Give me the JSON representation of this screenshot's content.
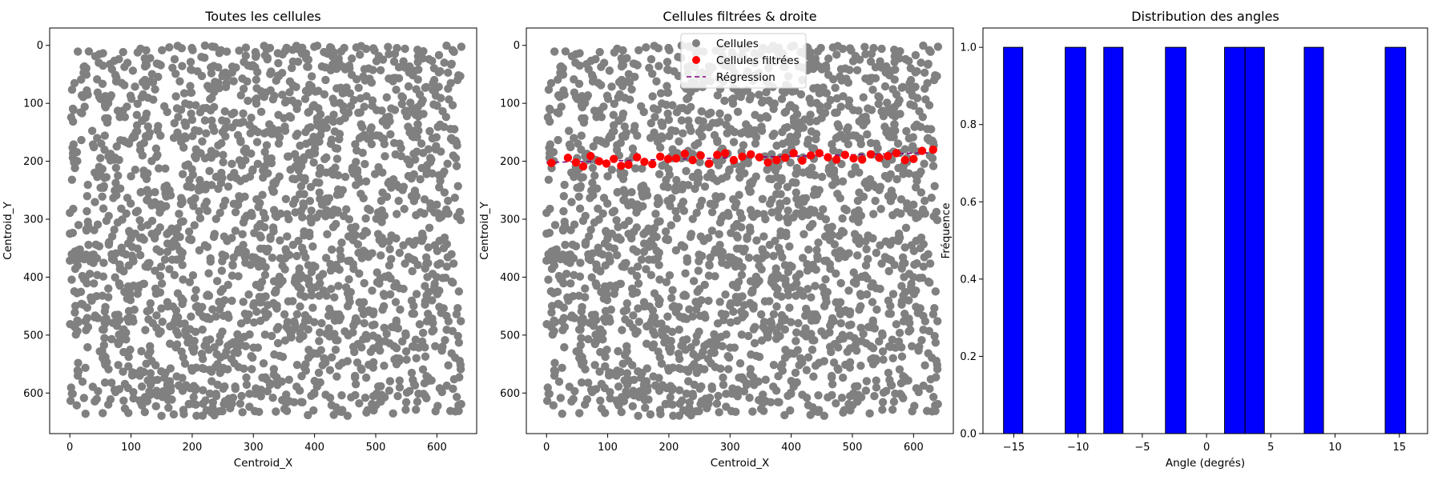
{
  "chart_data": [
    {
      "type": "scatter",
      "title": "Toutes les cellules",
      "xlabel": "Centroid_X",
      "ylabel": "Centroid_Y",
      "xlim": [
        -33,
        665
      ],
      "ylim": [
        670,
        -30
      ],
      "y_inverted": true,
      "xticks": [
        0,
        100,
        200,
        300,
        400,
        500,
        600
      ],
      "yticks": [
        0,
        100,
        200,
        300,
        400,
        500,
        600
      ],
      "series": [
        {
          "color": "#808080",
          "points_summary": "approx. 2000 cells uniformly distributed over x 0-640, y 0-640",
          "x_range": [
            0,
            640
          ],
          "y_range": [
            0,
            640
          ],
          "count": 2000
        }
      ]
    },
    {
      "type": "scatter",
      "title": "Cellules filtrées & droite",
      "xlabel": "Centroid_X",
      "ylabel": "Centroid_Y",
      "xlim": [
        -33,
        665
      ],
      "ylim": [
        670,
        -30
      ],
      "y_inverted": true,
      "xticks": [
        0,
        100,
        200,
        300,
        400,
        500,
        600
      ],
      "yticks": [
        0,
        100,
        200,
        300,
        400,
        500,
        600
      ],
      "legend_position": "top-center",
      "series": [
        {
          "name": "Cellules",
          "color": "#808080",
          "x_range": [
            0,
            640
          ],
          "y_range": [
            0,
            640
          ],
          "count": 2000
        },
        {
          "name": "Cellules filtrées",
          "color": "#ff0000",
          "points": [
            [
              8,
              203
            ],
            [
              35,
              194
            ],
            [
              48,
              202
            ],
            [
              60,
              209
            ],
            [
              72,
              191
            ],
            [
              86,
              200
            ],
            [
              98,
              204
            ],
            [
              110,
              196
            ],
            [
              122,
              208
            ],
            [
              134,
              206
            ],
            [
              148,
              193
            ],
            [
              160,
              201
            ],
            [
              173,
              205
            ],
            [
              186,
              192
            ],
            [
              199,
              196
            ],
            [
              212,
              195
            ],
            [
              226,
              187
            ],
            [
              239,
              198
            ],
            [
              252,
              190
            ],
            [
              266,
              204
            ],
            [
              279,
              189
            ],
            [
              292,
              186
            ],
            [
              306,
              198
            ],
            [
              320,
              192
            ],
            [
              334,
              188
            ],
            [
              348,
              193
            ],
            [
              362,
              202
            ],
            [
              376,
              198
            ],
            [
              390,
              194
            ],
            [
              404,
              186
            ],
            [
              418,
              199
            ],
            [
              432,
              190
            ],
            [
              446,
              186
            ],
            [
              460,
              193
            ],
            [
              474,
              197
            ],
            [
              488,
              189
            ],
            [
              502,
              195
            ],
            [
              516,
              197
            ],
            [
              530,
              188
            ],
            [
              544,
              194
            ],
            [
              558,
              191
            ],
            [
              572,
              186
            ],
            [
              586,
              198
            ],
            [
              600,
              196
            ],
            [
              614,
              182
            ],
            [
              632,
              180
            ]
          ]
        },
        {
          "name": "Régression",
          "color": "#800080",
          "line_style": "dashed",
          "x": [
            0,
            640
          ],
          "y": [
            202,
            185
          ]
        }
      ]
    },
    {
      "type": "bar",
      "title": "Distribution des angles",
      "xlabel": "Angle (degrés)",
      "ylabel": "Fréquence",
      "xlim": [
        -17.4,
        17.2
      ],
      "ylim": [
        0,
        1.05
      ],
      "xticks": [
        -15,
        -10,
        -5,
        0,
        5,
        10,
        15
      ],
      "yticks": [
        0.0,
        0.2,
        0.4,
        0.6,
        0.8,
        1.0
      ],
      "bar_color": "#0000ff",
      "bins": [
        {
          "left": -15.8,
          "right": -14.3,
          "value": 1
        },
        {
          "left": -11.0,
          "right": -9.4,
          "value": 1
        },
        {
          "left": -8.0,
          "right": -6.5,
          "value": 1
        },
        {
          "left": -3.2,
          "right": -1.6,
          "value": 1
        },
        {
          "left": 1.4,
          "right": 3.0,
          "value": 1
        },
        {
          "left": 3.0,
          "right": 4.5,
          "value": 1
        },
        {
          "left": 7.6,
          "right": 9.1,
          "value": 1
        },
        {
          "left": 13.9,
          "right": 15.5,
          "value": 1
        }
      ]
    }
  ]
}
